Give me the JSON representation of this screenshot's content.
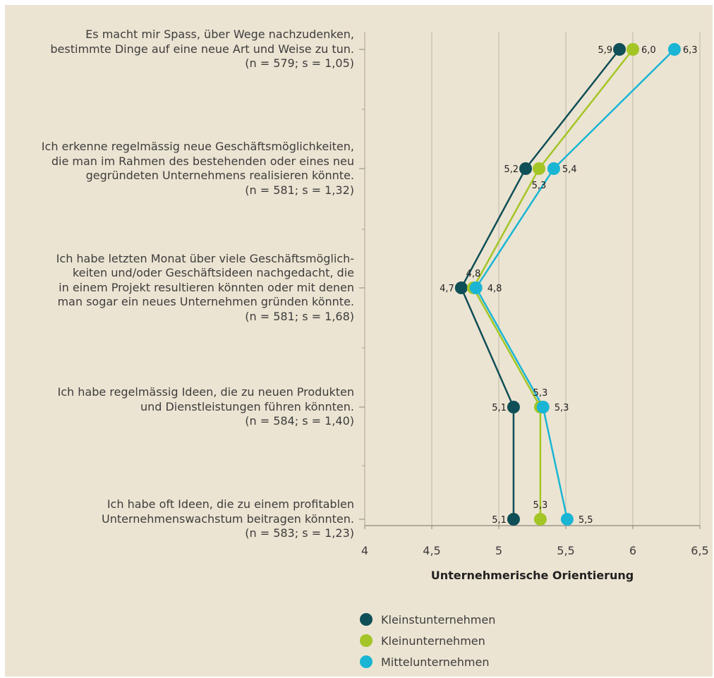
{
  "chart_data": {
    "type": "line",
    "orientation": "horizontal",
    "xlabel": "Unternehmerische Orientierung",
    "xlim": [
      4,
      6.5
    ],
    "xticks": [
      "4",
      "4,5",
      "5",
      "5,5",
      "6",
      "6,5"
    ],
    "xtick_values": [
      4,
      4.5,
      5,
      5.5,
      6,
      6.5
    ],
    "grid": "vertical",
    "legend_position": "bottom",
    "categories": [
      {
        "lines": [
          "Es macht mir Spass, über Wege nachzudenken,",
          "bestimmte Dinge auf eine neue Art und Weise zu tun.",
          "(n = 579; s = 1,05)"
        ]
      },
      {
        "lines": [
          "Ich erkenne regelmässig neue Geschäftsmöglichkeiten,",
          "die man im Rahmen des bestehenden oder eines neu",
          "gegründeten Unternehmens realisieren könnte.",
          "(n = 581; s = 1,32)"
        ]
      },
      {
        "lines": [
          "Ich habe letzten Monat über viele Geschäftsmöglich-",
          "keiten und/oder Geschäftsideen nachgedacht, die",
          "in einem Projekt resultieren könnten oder mit denen",
          "man sogar ein neues Unternehmen gründen könnte.",
          "(n = 581; s = 1,68)"
        ]
      },
      {
        "lines": [
          "Ich habe regelmässig Ideen, die zu neuen Produkten",
          "und Dienstleistungen führen könnten.",
          "(n = 584; s = 1,40)"
        ]
      },
      {
        "lines": [
          "Ich habe oft Ideen, die zu einem profitablen",
          "Unternehmenswachstum beitragen könnten.",
          "(n = 583; s = 1,23)"
        ]
      }
    ],
    "series": [
      {
        "name": "Kleinstunternehmen",
        "color": "#0f4f57",
        "values": [
          5.9,
          5.2,
          4.72,
          5.11,
          5.11
        ],
        "labels": [
          "5,9",
          "5,2",
          "4,7",
          "5,1",
          "5,1"
        ]
      },
      {
        "name": "Kleinunternehmen",
        "color": "#a3c526",
        "values": [
          6.0,
          5.3,
          4.81,
          5.31,
          5.31
        ],
        "labels": [
          "6,0",
          "5,3",
          "4,8",
          "5,3",
          "5,3"
        ]
      },
      {
        "name": "Mittelunternehmen",
        "color": "#1ab5d4",
        "values": [
          6.31,
          5.41,
          4.83,
          5.33,
          5.51
        ],
        "labels": [
          "6,3",
          "5,4",
          "4,8",
          "5,3",
          "5,5"
        ]
      }
    ]
  }
}
